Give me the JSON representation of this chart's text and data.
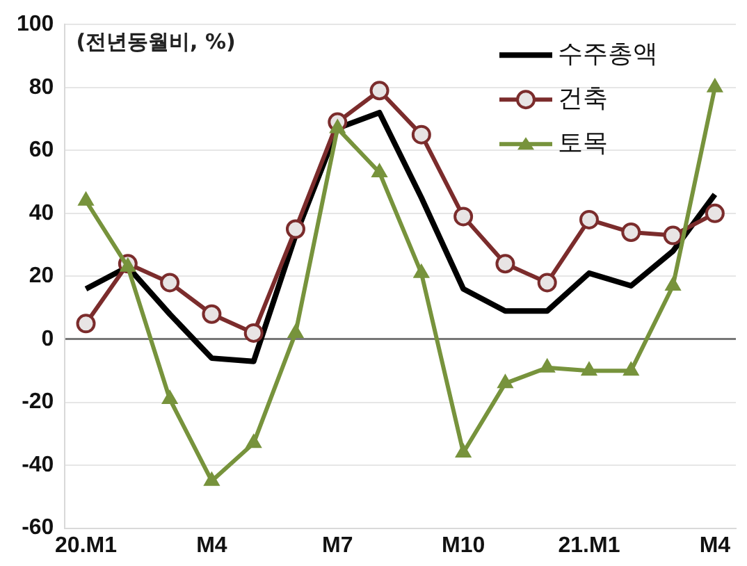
{
  "chart_data": {
    "type": "line",
    "annotations": [
      "(전년동월비, %)"
    ],
    "categories": [
      "20.M1",
      null,
      null,
      "M4",
      null,
      null,
      "M7",
      null,
      null,
      "M10",
      null,
      null,
      "21.M1",
      null,
      null,
      "M4"
    ],
    "series": [
      {
        "name": "수주총액",
        "color": "#000000",
        "marker": "none",
        "values": [
          16,
          23,
          8,
          -6,
          -7,
          33,
          67,
          72,
          45,
          16,
          9,
          9,
          21,
          17,
          28,
          46
        ]
      },
      {
        "name": "건축",
        "color": "#7b2c2c",
        "marker": "circle",
        "values": [
          5,
          24,
          18,
          8,
          2,
          35,
          69,
          79,
          65,
          39,
          24,
          18,
          38,
          34,
          33,
          40
        ]
      },
      {
        "name": "토목",
        "color": "#77933c",
        "marker": "triangle",
        "values": [
          44,
          23,
          -19,
          -45,
          -33,
          2,
          67,
          53,
          21,
          -36,
          -14,
          -9,
          -10,
          -10,
          17,
          80
        ]
      }
    ],
    "ylim": [
      -60,
      100
    ],
    "yticks": [
      -60,
      -40,
      -20,
      0,
      20,
      40,
      60,
      80,
      100
    ],
    "grid": "y",
    "legend": "top right"
  }
}
